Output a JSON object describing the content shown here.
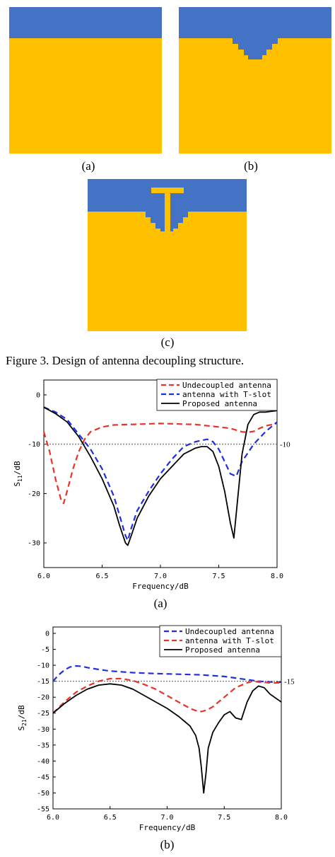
{
  "figure": {
    "colors": {
      "top": "#4472C4",
      "bottom": "#FFC000"
    },
    "panel_labels": [
      "(a)",
      "(b)",
      "(c)"
    ],
    "caption": "Figure 3. Design of antenna decoupling structure."
  },
  "chart_data": [
    {
      "type": "line",
      "xlabel": "Frequency/dB",
      "ylabel_main": "S",
      "ylabel_sub": "11",
      "ylabel_unit": "/dB",
      "xlim": [
        6.0,
        8.0
      ],
      "ylim": [
        -35,
        3
      ],
      "xticks": [
        "6.0",
        "6.5",
        "7.0",
        "7.5",
        "8.0"
      ],
      "yticks": [
        "0",
        "-10",
        "-20",
        "-30"
      ],
      "reference_line": {
        "y": -10,
        "label": "-10"
      },
      "sublabel": "(a)",
      "legend_position": "top-right",
      "series": [
        {
          "name": "Undecoupled antenna",
          "color": "#e8332a",
          "dash": "dashed",
          "x": [
            6.0,
            6.05,
            6.1,
            6.15,
            6.17,
            6.2,
            6.25,
            6.3,
            6.35,
            6.4,
            6.5,
            6.6,
            7.0,
            7.3,
            7.5,
            7.6,
            7.7,
            7.75,
            7.8,
            7.85,
            7.9,
            8.0
          ],
          "y": [
            -7.5,
            -11.5,
            -17,
            -21.5,
            -22,
            -19.5,
            -15,
            -11.5,
            -9,
            -7.5,
            -6.5,
            -6.1,
            -5.8,
            -6.0,
            -6.5,
            -6.8,
            -7.5,
            -7.6,
            -7.4,
            -6.8,
            -6.3,
            -5.8
          ]
        },
        {
          "name": "antenna with T-slot",
          "color": "#1f2fe0",
          "dash": "dashed",
          "x": [
            6.0,
            6.1,
            6.2,
            6.3,
            6.4,
            6.5,
            6.6,
            6.65,
            6.7,
            6.72,
            6.75,
            6.8,
            6.9,
            7.0,
            7.1,
            7.2,
            7.3,
            7.4,
            7.45,
            7.5,
            7.55,
            7.6,
            7.65,
            7.7,
            7.8,
            7.9,
            8.0
          ],
          "y": [
            -2.5,
            -3.5,
            -5,
            -8,
            -11,
            -15,
            -20.5,
            -24.5,
            -28.5,
            -29.5,
            -27,
            -23.5,
            -19.5,
            -16,
            -13,
            -10.5,
            -9.5,
            -9,
            -9.5,
            -11,
            -13.5,
            -16,
            -16.5,
            -13.5,
            -10,
            -7.5,
            -5.5
          ]
        },
        {
          "name": "Proposed antenna",
          "color": "#000000",
          "dash": "solid",
          "x": [
            6.0,
            6.1,
            6.2,
            6.3,
            6.4,
            6.5,
            6.6,
            6.65,
            6.7,
            6.72,
            6.75,
            6.8,
            6.9,
            7.0,
            7.1,
            7.2,
            7.3,
            7.35,
            7.4,
            7.45,
            7.5,
            7.55,
            7.6,
            7.63,
            7.65,
            7.7,
            7.75,
            7.8,
            7.85,
            7.9,
            8.0
          ],
          "y": [
            -2.5,
            -3.8,
            -5.5,
            -8.5,
            -12.5,
            -17,
            -22.5,
            -26.5,
            -30,
            -30.5,
            -28.5,
            -25,
            -20.5,
            -17,
            -14.5,
            -12,
            -10.8,
            -10.5,
            -10.5,
            -11.5,
            -14.5,
            -19.5,
            -26,
            -29,
            -24,
            -12,
            -6,
            -4,
            -3.5,
            -3.5,
            -3.2
          ]
        }
      ]
    },
    {
      "type": "line",
      "xlabel": "Frequency/dB",
      "ylabel_main": "S",
      "ylabel_sub": "21",
      "ylabel_unit": "/dB",
      "xlim": [
        6.0,
        8.0
      ],
      "ylim": [
        -55,
        2
      ],
      "xticks": [
        "6.0",
        "6.5",
        "7.0",
        "7.5",
        "8.0"
      ],
      "yticks": [
        "0",
        "-5",
        "-10",
        "-15",
        "-20",
        "-25",
        "-30",
        "-35",
        "-40",
        "-45",
        "-50",
        "-55"
      ],
      "reference_line": {
        "y": -15,
        "label": "-15"
      },
      "sublabel": "(b)",
      "legend_position": "top-right",
      "series": [
        {
          "name": "Undecoupled antenna",
          "color": "#1f2fe0",
          "dash": "dashed",
          "x": [
            6.0,
            6.05,
            6.1,
            6.15,
            6.2,
            6.25,
            6.3,
            6.4,
            6.5,
            6.7,
            6.9,
            7.1,
            7.3,
            7.5,
            7.6,
            7.7,
            7.8,
            7.9,
            8.0
          ],
          "y": [
            -15,
            -13,
            -11.5,
            -10.5,
            -10.2,
            -10.3,
            -10.7,
            -11.3,
            -11.8,
            -12.3,
            -12.6,
            -12.8,
            -13,
            -13.5,
            -14,
            -14.5,
            -15,
            -15.2,
            -15.3
          ]
        },
        {
          "name": "antenna with T-slot",
          "color": "#e8332a",
          "dash": "dashed",
          "x": [
            6.0,
            6.1,
            6.2,
            6.3,
            6.4,
            6.5,
            6.6,
            6.7,
            6.8,
            6.9,
            7.0,
            7.1,
            7.2,
            7.25,
            7.3,
            7.35,
            7.4,
            7.5,
            7.6,
            7.7,
            7.75,
            7.8,
            7.9,
            8.0
          ],
          "y": [
            -25,
            -21.5,
            -18.5,
            -16.5,
            -15,
            -14.2,
            -14.2,
            -14.8,
            -16,
            -17.5,
            -19.5,
            -21.5,
            -23.5,
            -24.2,
            -24.5,
            -24,
            -23,
            -20,
            -17,
            -15.5,
            -15,
            -15.2,
            -15.5,
            -15.5
          ]
        },
        {
          "name": "Proposed antenna",
          "color": "#000000",
          "dash": "solid",
          "x": [
            6.0,
            6.05,
            6.1,
            6.2,
            6.3,
            6.4,
            6.5,
            6.6,
            6.7,
            6.8,
            6.9,
            7.0,
            7.1,
            7.15,
            7.2,
            7.25,
            7.28,
            7.3,
            7.32,
            7.34,
            7.36,
            7.4,
            7.45,
            7.5,
            7.55,
            7.6,
            7.65,
            7.7,
            7.75,
            7.8,
            7.85,
            7.9,
            8.0
          ],
          "y": [
            -25,
            -23.5,
            -22,
            -19.5,
            -17.5,
            -16.2,
            -15.8,
            -16.2,
            -17.5,
            -19.5,
            -21.5,
            -23.5,
            -26,
            -27.5,
            -29,
            -32,
            -36,
            -42,
            -50,
            -44,
            -36,
            -31,
            -28,
            -25.5,
            -24.5,
            -26.5,
            -27,
            -21.5,
            -18,
            -16.5,
            -17,
            -19,
            -21.5
          ]
        }
      ]
    }
  ]
}
